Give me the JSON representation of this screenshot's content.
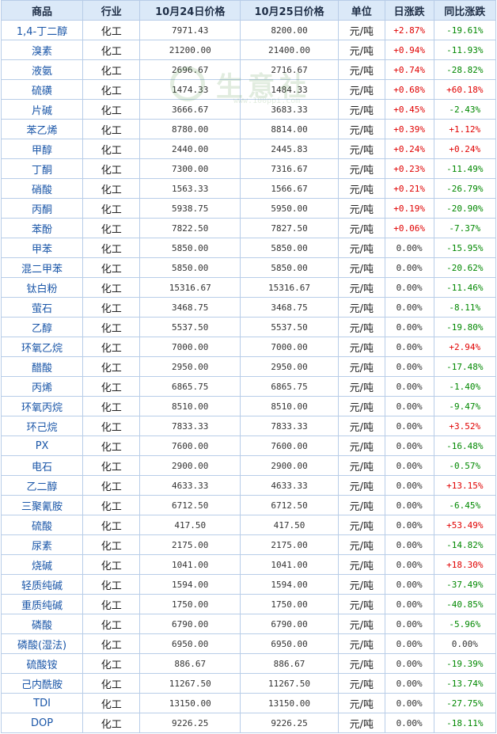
{
  "header": {
    "product": "商品",
    "industry": "行业",
    "price_oct24": "10月24日价格",
    "price_oct25": "10月25日价格",
    "unit": "单位",
    "daily_change": "日涨跌",
    "yoy_change": "同比涨跌"
  },
  "watermark": {
    "text": "生意社",
    "url": "www.100ppi.com"
  },
  "colors": {
    "up": "#e00000",
    "down": "#008800",
    "header_bg": "#dbe9f8",
    "border": "#b8cde8",
    "name": "#1a56a8"
  },
  "rows": [
    {
      "name": "1,4-丁二醇",
      "industry": "化工",
      "p1": "7971.43",
      "p2": "8200.00",
      "unit": "元/吨",
      "daily": "+2.87%",
      "yoy": "-19.61%"
    },
    {
      "name": "溴素",
      "industry": "化工",
      "p1": "21200.00",
      "p2": "21400.00",
      "unit": "元/吨",
      "daily": "+0.94%",
      "yoy": "-11.93%"
    },
    {
      "name": "液氨",
      "industry": "化工",
      "p1": "2696.67",
      "p2": "2716.67",
      "unit": "元/吨",
      "daily": "+0.74%",
      "yoy": "-28.82%"
    },
    {
      "name": "硫磺",
      "industry": "化工",
      "p1": "1474.33",
      "p2": "1484.33",
      "unit": "元/吨",
      "daily": "+0.68%",
      "yoy": "+60.18%"
    },
    {
      "name": "片碱",
      "industry": "化工",
      "p1": "3666.67",
      "p2": "3683.33",
      "unit": "元/吨",
      "daily": "+0.45%",
      "yoy": "-2.43%"
    },
    {
      "name": "苯乙烯",
      "industry": "化工",
      "p1": "8780.00",
      "p2": "8814.00",
      "unit": "元/吨",
      "daily": "+0.39%",
      "yoy": "+1.12%"
    },
    {
      "name": "甲醇",
      "industry": "化工",
      "p1": "2440.00",
      "p2": "2445.83",
      "unit": "元/吨",
      "daily": "+0.24%",
      "yoy": "+0.24%"
    },
    {
      "name": "丁酮",
      "industry": "化工",
      "p1": "7300.00",
      "p2": "7316.67",
      "unit": "元/吨",
      "daily": "+0.23%",
      "yoy": "-11.49%"
    },
    {
      "name": "硝酸",
      "industry": "化工",
      "p1": "1563.33",
      "p2": "1566.67",
      "unit": "元/吨",
      "daily": "+0.21%",
      "yoy": "-26.79%"
    },
    {
      "name": "丙酮",
      "industry": "化工",
      "p1": "5938.75",
      "p2": "5950.00",
      "unit": "元/吨",
      "daily": "+0.19%",
      "yoy": "-20.90%"
    },
    {
      "name": "苯酚",
      "industry": "化工",
      "p1": "7822.50",
      "p2": "7827.50",
      "unit": "元/吨",
      "daily": "+0.06%",
      "yoy": "-7.37%"
    },
    {
      "name": "甲苯",
      "industry": "化工",
      "p1": "5850.00",
      "p2": "5850.00",
      "unit": "元/吨",
      "daily": "0.00%",
      "yoy": "-15.95%"
    },
    {
      "name": "混二甲苯",
      "industry": "化工",
      "p1": "5850.00",
      "p2": "5850.00",
      "unit": "元/吨",
      "daily": "0.00%",
      "yoy": "-20.62%"
    },
    {
      "name": "钛白粉",
      "industry": "化工",
      "p1": "15316.67",
      "p2": "15316.67",
      "unit": "元/吨",
      "daily": "0.00%",
      "yoy": "-11.46%"
    },
    {
      "name": "萤石",
      "industry": "化工",
      "p1": "3468.75",
      "p2": "3468.75",
      "unit": "元/吨",
      "daily": "0.00%",
      "yoy": "-8.11%"
    },
    {
      "name": "乙醇",
      "industry": "化工",
      "p1": "5537.50",
      "p2": "5537.50",
      "unit": "元/吨",
      "daily": "0.00%",
      "yoy": "-19.80%"
    },
    {
      "name": "环氧乙烷",
      "industry": "化工",
      "p1": "7000.00",
      "p2": "7000.00",
      "unit": "元/吨",
      "daily": "0.00%",
      "yoy": "+2.94%"
    },
    {
      "name": "醋酸",
      "industry": "化工",
      "p1": "2950.00",
      "p2": "2950.00",
      "unit": "元/吨",
      "daily": "0.00%",
      "yoy": "-17.48%"
    },
    {
      "name": "丙烯",
      "industry": "化工",
      "p1": "6865.75",
      "p2": "6865.75",
      "unit": "元/吨",
      "daily": "0.00%",
      "yoy": "-1.40%"
    },
    {
      "name": "环氧丙烷",
      "industry": "化工",
      "p1": "8510.00",
      "p2": "8510.00",
      "unit": "元/吨",
      "daily": "0.00%",
      "yoy": "-9.47%"
    },
    {
      "name": "环己烷",
      "industry": "化工",
      "p1": "7833.33",
      "p2": "7833.33",
      "unit": "元/吨",
      "daily": "0.00%",
      "yoy": "+3.52%"
    },
    {
      "name": "PX",
      "industry": "化工",
      "p1": "7600.00",
      "p2": "7600.00",
      "unit": "元/吨",
      "daily": "0.00%",
      "yoy": "-16.48%"
    },
    {
      "name": "电石",
      "industry": "化工",
      "p1": "2900.00",
      "p2": "2900.00",
      "unit": "元/吨",
      "daily": "0.00%",
      "yoy": "-0.57%"
    },
    {
      "name": "乙二醇",
      "industry": "化工",
      "p1": "4633.33",
      "p2": "4633.33",
      "unit": "元/吨",
      "daily": "0.00%",
      "yoy": "+13.15%"
    },
    {
      "name": "三聚氰胺",
      "industry": "化工",
      "p1": "6712.50",
      "p2": "6712.50",
      "unit": "元/吨",
      "daily": "0.00%",
      "yoy": "-6.45%"
    },
    {
      "name": "硫酸",
      "industry": "化工",
      "p1": "417.50",
      "p2": "417.50",
      "unit": "元/吨",
      "daily": "0.00%",
      "yoy": "+53.49%"
    },
    {
      "name": "尿素",
      "industry": "化工",
      "p1": "2175.00",
      "p2": "2175.00",
      "unit": "元/吨",
      "daily": "0.00%",
      "yoy": "-14.82%"
    },
    {
      "name": "烧碱",
      "industry": "化工",
      "p1": "1041.00",
      "p2": "1041.00",
      "unit": "元/吨",
      "daily": "0.00%",
      "yoy": "+18.30%"
    },
    {
      "name": "轻质纯碱",
      "industry": "化工",
      "p1": "1594.00",
      "p2": "1594.00",
      "unit": "元/吨",
      "daily": "0.00%",
      "yoy": "-37.49%"
    },
    {
      "name": "重质纯碱",
      "industry": "化工",
      "p1": "1750.00",
      "p2": "1750.00",
      "unit": "元/吨",
      "daily": "0.00%",
      "yoy": "-40.85%"
    },
    {
      "name": "磷酸",
      "industry": "化工",
      "p1": "6790.00",
      "p2": "6790.00",
      "unit": "元/吨",
      "daily": "0.00%",
      "yoy": "-5.96%"
    },
    {
      "name": "磷酸(湿法)",
      "industry": "化工",
      "p1": "6950.00",
      "p2": "6950.00",
      "unit": "元/吨",
      "daily": "0.00%",
      "yoy": "0.00%"
    },
    {
      "name": "硫酸铵",
      "industry": "化工",
      "p1": "886.67",
      "p2": "886.67",
      "unit": "元/吨",
      "daily": "0.00%",
      "yoy": "-19.39%"
    },
    {
      "name": "己内酰胺",
      "industry": "化工",
      "p1": "11267.50",
      "p2": "11267.50",
      "unit": "元/吨",
      "daily": "0.00%",
      "yoy": "-13.74%"
    },
    {
      "name": "TDI",
      "industry": "化工",
      "p1": "13150.00",
      "p2": "13150.00",
      "unit": "元/吨",
      "daily": "0.00%",
      "yoy": "-27.75%"
    },
    {
      "name": "DOP",
      "industry": "化工",
      "p1": "9226.25",
      "p2": "9226.25",
      "unit": "元/吨",
      "daily": "0.00%",
      "yoy": "-18.11%"
    }
  ]
}
